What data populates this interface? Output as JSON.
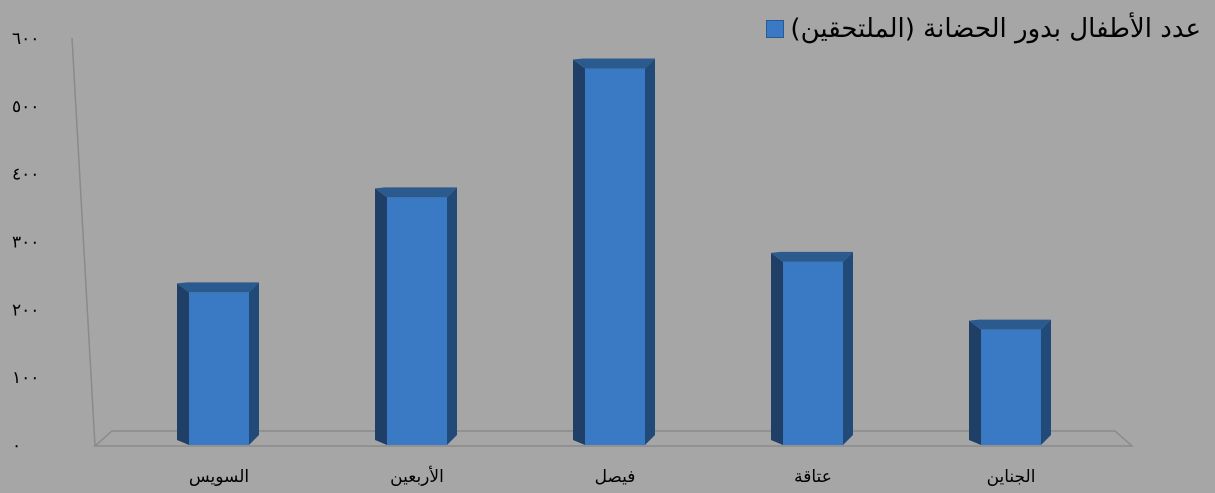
{
  "chart_data": {
    "type": "bar",
    "categories": [
      "الجناين",
      "عتاقة",
      "فيصل",
      "الأربعين",
      "السويس"
    ],
    "series": [
      {
        "name": "عدد الأطفال بدور الحضانة (الملتحقين)",
        "values": [
          170,
          270,
          555,
          365,
          225
        ],
        "color": "#3a7ac4"
      }
    ],
    "y_ticks": [
      "٠",
      "١٠٠",
      "٢٠٠",
      "٣٠٠",
      "٤٠٠",
      "٥٠٠",
      "٦٠٠"
    ],
    "ylim": [
      0,
      600
    ],
    "title": "",
    "xlabel": "",
    "ylabel": "",
    "legend_position": "top-right",
    "grid": false,
    "style": "3d-column",
    "category_order": "right-to-left"
  }
}
